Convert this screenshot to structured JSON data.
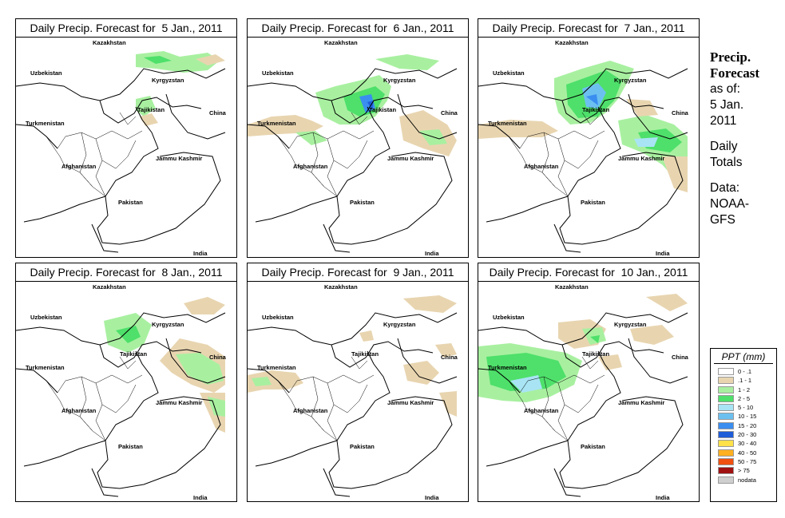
{
  "panels": [
    {
      "title": "Daily Precip. Forecast for  5 Jan., 2011"
    },
    {
      "title": "Daily Precip. Forecast for  6 Jan., 2011"
    },
    {
      "title": "Daily Precip. Forecast for  7 Jan., 2011"
    },
    {
      "title": "Daily Precip. Forecast for  8 Jan., 2011"
    },
    {
      "title": "Daily Precip. Forecast for  9 Jan., 2011"
    },
    {
      "title": "Daily Precip. Forecast for  10 Jan., 2011"
    }
  ],
  "map_labels": {
    "kazakhstan": "Kazakhstan",
    "uzbekistan": "Uzbekistan",
    "kyrgyzstan": "Kyrgyzstan",
    "tajikistan": "Tajikistan",
    "turkmenistan": "Turkmenistan",
    "china": "China",
    "afghanistan": "Afghanistan",
    "jammu_kashmir": "Jammu Kashmir",
    "pakistan": "Pakistan",
    "india": "India"
  },
  "side": {
    "title_line1": "Precip.",
    "title_line2": "Forecast",
    "asof_line1": "as of:",
    "asof_line2": "5 Jan.",
    "asof_line3": "2011",
    "totals_line1": "Daily",
    "totals_line2": "Totals",
    "data_line1": "Data:",
    "data_line2": "NOAA-",
    "data_line3": "GFS"
  },
  "legend": {
    "title": "PPT (mm)",
    "items": [
      {
        "label": "0 - .1",
        "color": "#ffffff"
      },
      {
        "label": ".1 - 1",
        "color": "#e8d5b0"
      },
      {
        "label": "1 - 2",
        "color": "#a8f0a0"
      },
      {
        "label": "2 - 5",
        "color": "#4ee06a"
      },
      {
        "label": "5 - 10",
        "color": "#a8e4f4"
      },
      {
        "label": "10 - 15",
        "color": "#6cc0f0"
      },
      {
        "label": "15 - 20",
        "color": "#3a8ef0"
      },
      {
        "label": "20 - 30",
        "color": "#1f5cd8"
      },
      {
        "label": "30 - 40",
        "color": "#ffe14a"
      },
      {
        "label": "40 - 50",
        "color": "#ffb020"
      },
      {
        "label": "50 - 75",
        "color": "#f05010"
      },
      {
        "label": "> 75",
        "color": "#a01010"
      },
      {
        "label": "nodata",
        "color": "#cfcfcf"
      }
    ]
  }
}
